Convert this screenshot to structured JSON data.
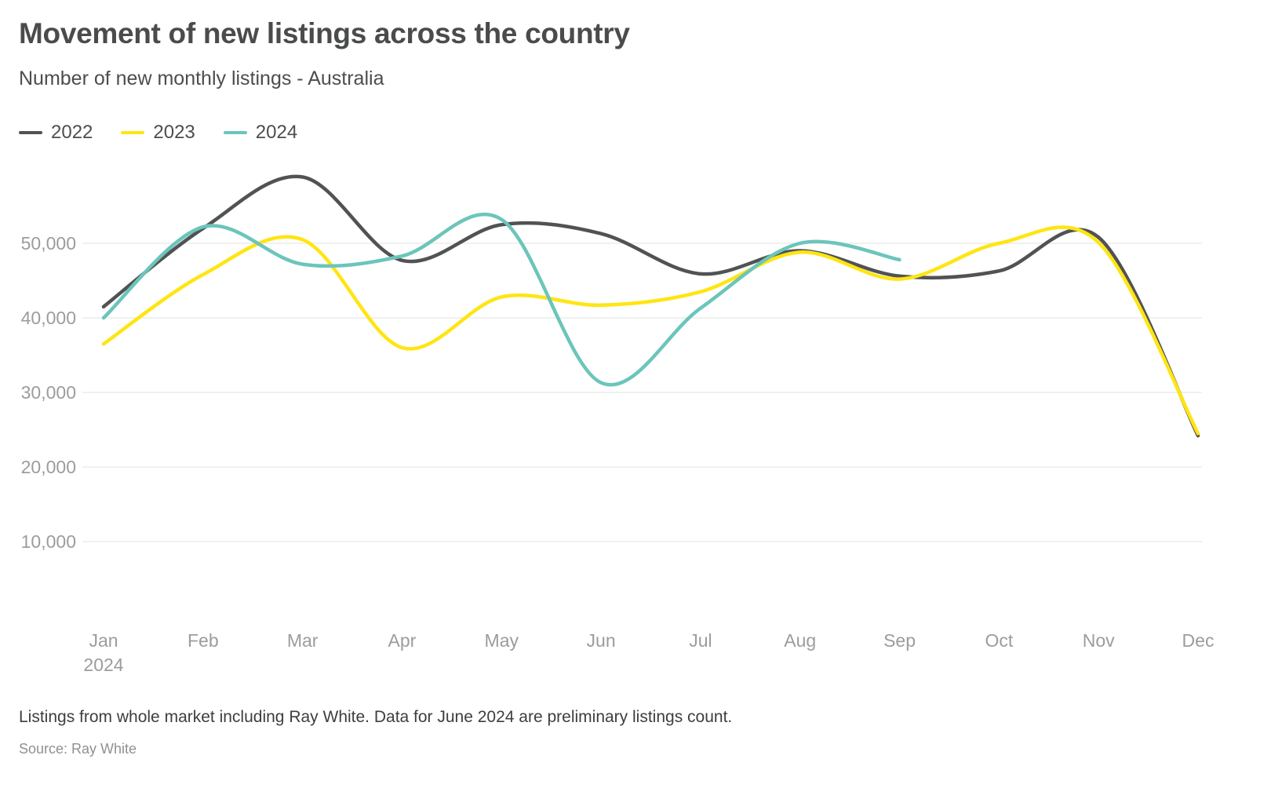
{
  "chart": {
    "title": "Movement of new listings across the country",
    "subtitle": "Number of new monthly listings - Australia",
    "note": "Listings from whole market including Ray White. Data for June 2024 are preliminary listings count.",
    "source": "Source: Ray White"
  },
  "chart_data": {
    "type": "line",
    "title": "Movement of new listings across the country",
    "subtitle": "Number of new monthly listings - Australia",
    "categories": [
      "Jan",
      "Feb",
      "Mar",
      "Apr",
      "May",
      "Jun",
      "Jul",
      "Aug",
      "Sep",
      "Oct",
      "Nov",
      "Dec"
    ],
    "x_axis_year_label": "2024",
    "series": [
      {
        "name": "2022",
        "color": "#515254",
        "values": [
          41500,
          52000,
          58900,
          47700,
          52500,
          51300,
          45900,
          49000,
          45600,
          46300,
          50800,
          24200
        ]
      },
      {
        "name": "2023",
        "color": "#FFE512",
        "values": [
          36500,
          45800,
          50500,
          36000,
          42800,
          41700,
          43500,
          48800,
          45200,
          50000,
          50100,
          24500
        ]
      },
      {
        "name": "2024",
        "color": "#6BC5BB",
        "values": [
          40000,
          52200,
          47200,
          48300,
          53200,
          31300,
          41300,
          50000,
          47800
        ]
      }
    ],
    "y_ticks": [
      {
        "value": 10000,
        "label": "10,000"
      },
      {
        "value": 20000,
        "label": "20,000"
      },
      {
        "value": 30000,
        "label": "30,000"
      },
      {
        "value": 40000,
        "label": "40,000"
      },
      {
        "value": 50000,
        "label": "50,000"
      }
    ],
    "ylim": [
      0,
      60000
    ],
    "grid": "horizontal",
    "legend_position": "top-left",
    "colors": {
      "grid_line": "#ececec",
      "axis_label": "#9c9c9c"
    }
  }
}
